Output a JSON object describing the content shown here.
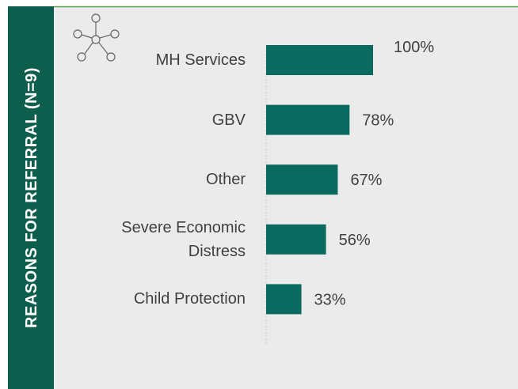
{
  "chart_data": {
    "type": "bar",
    "orientation": "horizontal",
    "title": "REASONS FOR REFERRAL (N=9)",
    "categories": [
      "MH Services",
      "GBV",
      "Other",
      "Severe Economic Distress",
      "Child Protection"
    ],
    "values": [
      100,
      78,
      67,
      56,
      33
    ],
    "value_labels": [
      "100%",
      "78%",
      "67%",
      "56%",
      "33%"
    ],
    "color": "#0b6a5f",
    "xlim": [
      0,
      100
    ]
  }
}
